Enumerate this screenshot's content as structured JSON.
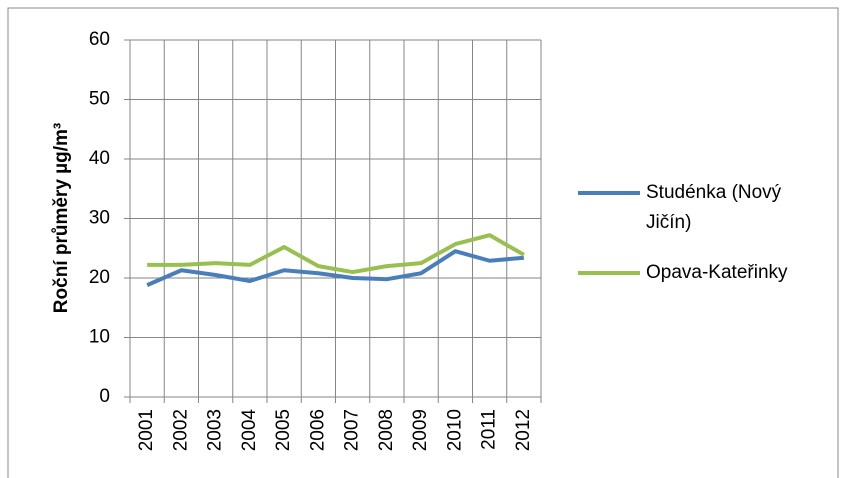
{
  "chart_data": {
    "type": "line",
    "y_label": "Roční průměry µg/m³",
    "categories": [
      "2001",
      "2002",
      "2003",
      "2004",
      "2005",
      "2006",
      "2007",
      "2008",
      "2009",
      "2010",
      "2011",
      "2012"
    ],
    "series": [
      {
        "name": "Studénka (Nový Jičín)",
        "color": "#4a7ebb",
        "values": [
          18.8,
          21.3,
          20.5,
          19.5,
          21.3,
          20.8,
          20,
          19.8,
          20.8,
          24.5,
          22.9,
          23.4
        ]
      },
      {
        "name": "Opava-Kateřinky",
        "color": "#98c04f",
        "values": [
          22.2,
          22.2,
          22.5,
          22.2,
          25.2,
          22,
          21,
          22,
          22.5,
          25.7,
          27.2,
          23.9
        ]
      }
    ],
    "ylim": [
      0,
      60
    ],
    "yticks": [
      0,
      10,
      20,
      30,
      40,
      50,
      60
    ],
    "grid": true
  }
}
